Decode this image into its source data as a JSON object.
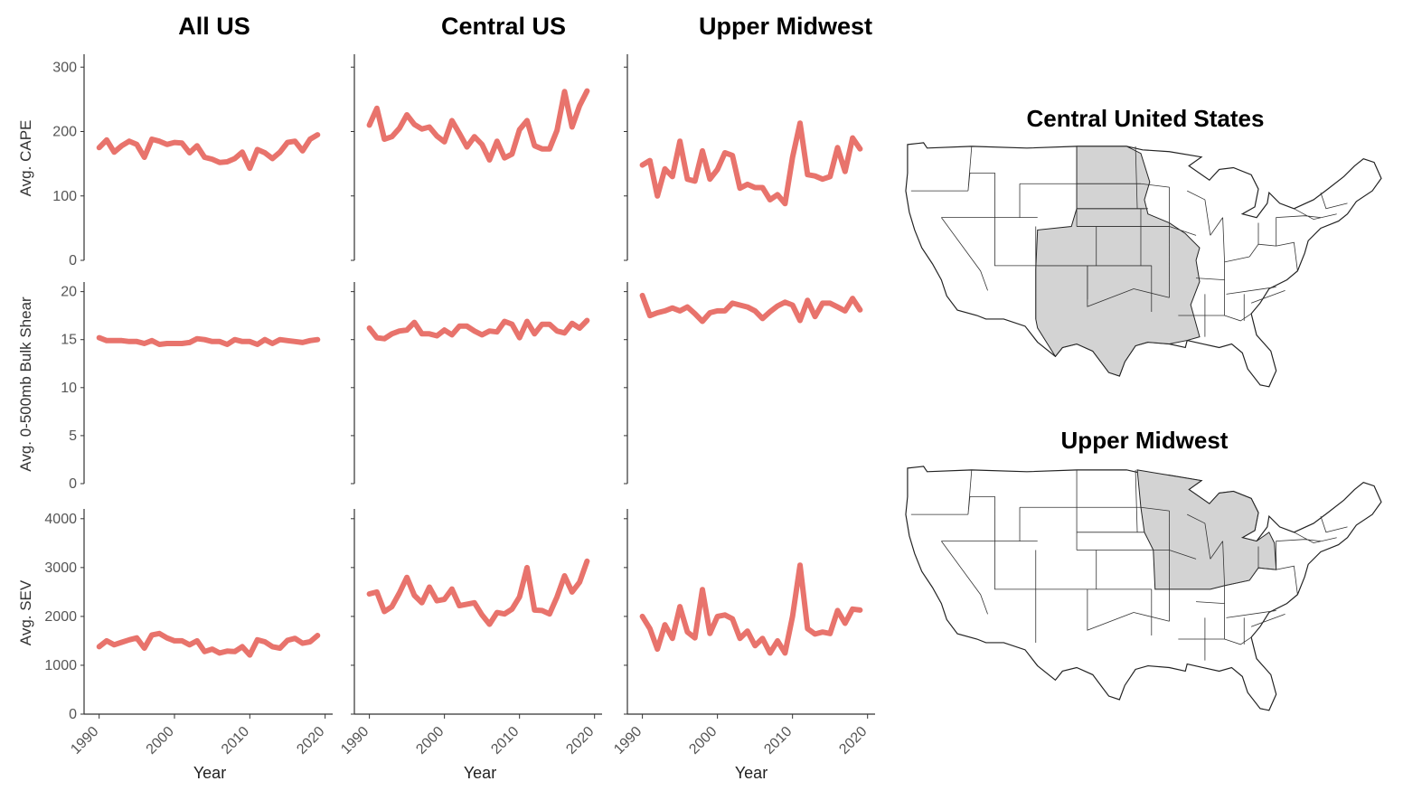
{
  "chart_data": {
    "type": "line",
    "columns": [
      "All US",
      "Central US",
      "Upper Midwest"
    ],
    "rows": [
      {
        "ylabel": "Avg. CAPE",
        "ylim": [
          0,
          320
        ],
        "yticks": [
          0,
          100,
          200,
          300
        ]
      },
      {
        "ylabel": "Avg. 0-500mb Bulk Shear",
        "ylim": [
          0,
          21
        ],
        "yticks": [
          0,
          5,
          10,
          15,
          20
        ]
      },
      {
        "ylabel": "Avg. SEV",
        "ylim": [
          0,
          4200
        ],
        "yticks": [
          0,
          1000,
          2000,
          3000,
          4000
        ]
      }
    ],
    "xlabel": "Year",
    "xlim": [
      1988,
      2021
    ],
    "xticks": [
      1990,
      2000,
      2010,
      2020
    ],
    "x": [
      1990,
      1991,
      1992,
      1993,
      1994,
      1995,
      1996,
      1997,
      1998,
      1999,
      2000,
      2001,
      2002,
      2003,
      2004,
      2005,
      2006,
      2007,
      2008,
      2009,
      2010,
      2011,
      2012,
      2013,
      2014,
      2015,
      2016,
      2017,
      2018,
      2019
    ],
    "series_color": "#e8736c",
    "grid": false,
    "panels": [
      {
        "row": 0,
        "col": 0,
        "values": [
          175,
          187,
          168,
          178,
          185,
          180,
          160,
          188,
          185,
          180,
          183,
          182,
          167,
          178,
          160,
          157,
          152,
          153,
          158,
          168,
          143,
          172,
          167,
          158,
          168,
          183,
          185,
          170,
          188,
          195
        ]
      },
      {
        "row": 0,
        "col": 1,
        "values": [
          210,
          236,
          188,
          192,
          205,
          226,
          211,
          204,
          207,
          193,
          184,
          217,
          197,
          176,
          192,
          180,
          156,
          185,
          159,
          165,
          203,
          217,
          178,
          173,
          173,
          202,
          262,
          207,
          240,
          263
        ]
      },
      {
        "row": 0,
        "col": 2,
        "values": [
          148,
          155,
          100,
          142,
          130,
          185,
          126,
          123,
          170,
          126,
          141,
          167,
          163,
          112,
          118,
          113,
          113,
          94,
          102,
          88,
          160,
          213,
          133,
          131,
          126,
          130,
          175,
          138,
          190,
          173
        ]
      },
      {
        "row": 1,
        "col": 0,
        "values": [
          15.2,
          14.9,
          14.9,
          14.9,
          14.8,
          14.8,
          14.6,
          14.9,
          14.5,
          14.6,
          14.6,
          14.6,
          14.7,
          15.1,
          15.0,
          14.8,
          14.8,
          14.5,
          15.0,
          14.8,
          14.8,
          14.5,
          15.0,
          14.6,
          15.0,
          14.9,
          14.8,
          14.7,
          14.9,
          15.0
        ]
      },
      {
        "row": 1,
        "col": 1,
        "values": [
          16.2,
          15.2,
          15.1,
          15.6,
          15.9,
          16.0,
          16.8,
          15.6,
          15.6,
          15.4,
          16.0,
          15.5,
          16.4,
          16.4,
          15.9,
          15.5,
          15.9,
          15.8,
          16.9,
          16.6,
          15.2,
          16.9,
          15.6,
          16.6,
          16.6,
          15.9,
          15.7,
          16.7,
          16.2,
          17.0
        ]
      },
      {
        "row": 1,
        "col": 2,
        "values": [
          19.6,
          17.5,
          17.8,
          18.0,
          18.3,
          18.0,
          18.4,
          17.7,
          16.9,
          17.8,
          18.0,
          18.0,
          18.8,
          18.6,
          18.4,
          18.0,
          17.2,
          17.9,
          18.5,
          18.9,
          18.6,
          17.0,
          19.1,
          17.4,
          18.8,
          18.8,
          18.4,
          18.0,
          19.3,
          18.1
        ]
      },
      {
        "row": 2,
        "col": 0,
        "values": [
          1380,
          1500,
          1420,
          1470,
          1520,
          1560,
          1350,
          1620,
          1650,
          1560,
          1500,
          1500,
          1420,
          1500,
          1280,
          1330,
          1250,
          1290,
          1280,
          1380,
          1210,
          1520,
          1480,
          1380,
          1350,
          1510,
          1550,
          1450,
          1480,
          1610
        ]
      },
      {
        "row": 2,
        "col": 1,
        "values": [
          2460,
          2500,
          2100,
          2200,
          2480,
          2800,
          2430,
          2280,
          2600,
          2320,
          2350,
          2560,
          2220,
          2250,
          2280,
          2030,
          1840,
          2080,
          2050,
          2150,
          2400,
          3000,
          2130,
          2120,
          2050,
          2400,
          2830,
          2500,
          2700,
          3130
        ]
      },
      {
        "row": 2,
        "col": 2,
        "values": [
          2000,
          1750,
          1330,
          1830,
          1550,
          2200,
          1680,
          1560,
          2550,
          1650,
          2000,
          2030,
          1950,
          1550,
          1700,
          1400,
          1550,
          1250,
          1500,
          1250,
          2000,
          3050,
          1750,
          1640,
          1680,
          1650,
          2120,
          1860,
          2150,
          2130
        ]
      }
    ]
  },
  "maps": [
    {
      "title": "Central United States"
    },
    {
      "title": "Upper Midwest"
    }
  ]
}
